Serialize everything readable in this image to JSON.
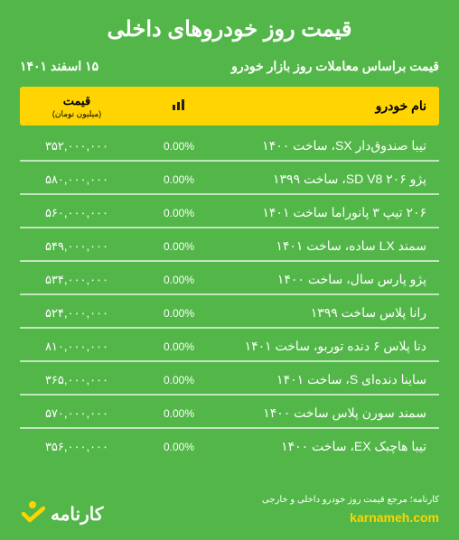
{
  "title": "قیمت روز خودروهای داخلی",
  "subtitle": "قیمت براساس معاملات روز بازار خودرو",
  "date": "۱۵ اسفند ۱۴۰۱",
  "header": {
    "name": "نام خودرو",
    "change_icon": "📊",
    "price_label": "قیمت",
    "price_unit": "(میلیون تومان)"
  },
  "rows": [
    {
      "name": "تیبا صندوق‌دار SX، ساخت ۱۴۰۰",
      "change": "0.00%",
      "price": "۳۵۲,۰۰۰,۰۰۰"
    },
    {
      "name": "پژو ۲۰۶ SD V8، ساخت ۱۳۹۹",
      "change": "0.00%",
      "price": "۵۸۰,۰۰۰,۰۰۰"
    },
    {
      "name": "۲۰۶ تیپ ۳ پانوراما ساخت ۱۴۰۱",
      "change": "0.00%",
      "price": "۵۶۰,۰۰۰,۰۰۰"
    },
    {
      "name": "سمند LX ساده، ساخت ۱۴۰۱",
      "change": "0.00%",
      "price": "۵۴۹,۰۰۰,۰۰۰"
    },
    {
      "name": "پژو پارس سال، ساخت ۱۴۰۰",
      "change": "0.00%",
      "price": "۵۳۴,۰۰۰,۰۰۰"
    },
    {
      "name": "رانا پلاس ساخت ۱۳۹۹",
      "change": "0.00%",
      "price": "۵۲۴,۰۰۰,۰۰۰"
    },
    {
      "name": "دنا پلاس ۶ دنده توربو، ساخت ۱۴۰۱",
      "change": "0.00%",
      "price": "۸۱۰,۰۰۰,۰۰۰"
    },
    {
      "name": "ساینا دنده‌ای S، ساخت ۱۴۰۱",
      "change": "0.00%",
      "price": "۳۶۵,۰۰۰,۰۰۰"
    },
    {
      "name": "سمند سورن پلاس ساخت ۱۴۰۰",
      "change": "0.00%",
      "price": "۵۷۰,۰۰۰,۰۰۰"
    },
    {
      "name": "تیبا هاچبک EX، ساخت ۱۴۰۰",
      "change": "0.00%",
      "price": "۳۵۶,۰۰۰,۰۰۰"
    }
  ],
  "footer": {
    "tagline": "کارنامه؛ مرجع قیمت روز خودرو داخلی و خارجی",
    "site": "karnameh.com",
    "brand": "کارنامه"
  },
  "colors": {
    "bg": "#52b748",
    "accent": "#ffd400",
    "text": "#ffffff",
    "divider": "rgba(255,255,255,0.65)"
  }
}
